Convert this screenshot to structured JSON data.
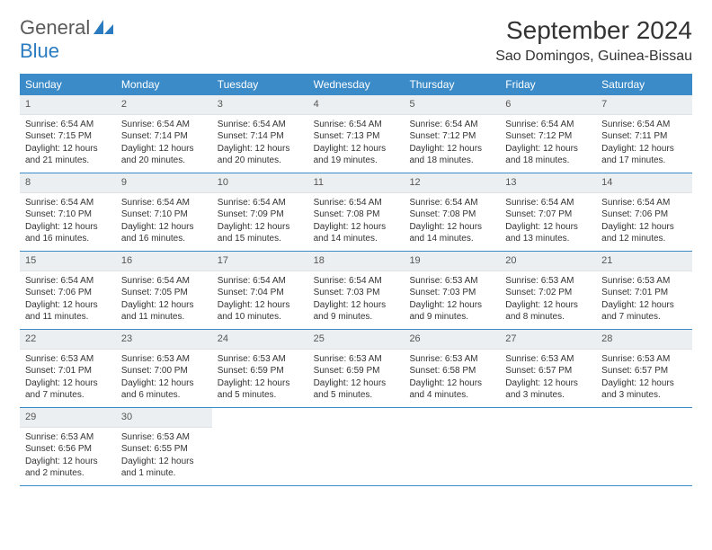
{
  "logo": {
    "line1": "General",
    "line2": "Blue"
  },
  "title": "September 2024",
  "location": "Sao Domingos, Guinea-Bissau",
  "colors": {
    "header_bg": "#3b8bc9",
    "header_fg": "#ffffff",
    "daynum_bg": "#eceff1",
    "row_border": "#3b8bc9",
    "logo_blue": "#2a7bbf"
  },
  "days_of_week": [
    "Sunday",
    "Monday",
    "Tuesday",
    "Wednesday",
    "Thursday",
    "Friday",
    "Saturday"
  ],
  "weeks": [
    [
      {
        "n": "1",
        "sunrise": "6:54 AM",
        "sunset": "7:15 PM",
        "daylight": "12 hours and 21 minutes."
      },
      {
        "n": "2",
        "sunrise": "6:54 AM",
        "sunset": "7:14 PM",
        "daylight": "12 hours and 20 minutes."
      },
      {
        "n": "3",
        "sunrise": "6:54 AM",
        "sunset": "7:14 PM",
        "daylight": "12 hours and 20 minutes."
      },
      {
        "n": "4",
        "sunrise": "6:54 AM",
        "sunset": "7:13 PM",
        "daylight": "12 hours and 19 minutes."
      },
      {
        "n": "5",
        "sunrise": "6:54 AM",
        "sunset": "7:12 PM",
        "daylight": "12 hours and 18 minutes."
      },
      {
        "n": "6",
        "sunrise": "6:54 AM",
        "sunset": "7:12 PM",
        "daylight": "12 hours and 18 minutes."
      },
      {
        "n": "7",
        "sunrise": "6:54 AM",
        "sunset": "7:11 PM",
        "daylight": "12 hours and 17 minutes."
      }
    ],
    [
      {
        "n": "8",
        "sunrise": "6:54 AM",
        "sunset": "7:10 PM",
        "daylight": "12 hours and 16 minutes."
      },
      {
        "n": "9",
        "sunrise": "6:54 AM",
        "sunset": "7:10 PM",
        "daylight": "12 hours and 16 minutes."
      },
      {
        "n": "10",
        "sunrise": "6:54 AM",
        "sunset": "7:09 PM",
        "daylight": "12 hours and 15 minutes."
      },
      {
        "n": "11",
        "sunrise": "6:54 AM",
        "sunset": "7:08 PM",
        "daylight": "12 hours and 14 minutes."
      },
      {
        "n": "12",
        "sunrise": "6:54 AM",
        "sunset": "7:08 PM",
        "daylight": "12 hours and 14 minutes."
      },
      {
        "n": "13",
        "sunrise": "6:54 AM",
        "sunset": "7:07 PM",
        "daylight": "12 hours and 13 minutes."
      },
      {
        "n": "14",
        "sunrise": "6:54 AM",
        "sunset": "7:06 PM",
        "daylight": "12 hours and 12 minutes."
      }
    ],
    [
      {
        "n": "15",
        "sunrise": "6:54 AM",
        "sunset": "7:06 PM",
        "daylight": "12 hours and 11 minutes."
      },
      {
        "n": "16",
        "sunrise": "6:54 AM",
        "sunset": "7:05 PM",
        "daylight": "12 hours and 11 minutes."
      },
      {
        "n": "17",
        "sunrise": "6:54 AM",
        "sunset": "7:04 PM",
        "daylight": "12 hours and 10 minutes."
      },
      {
        "n": "18",
        "sunrise": "6:54 AM",
        "sunset": "7:03 PM",
        "daylight": "12 hours and 9 minutes."
      },
      {
        "n": "19",
        "sunrise": "6:53 AM",
        "sunset": "7:03 PM",
        "daylight": "12 hours and 9 minutes."
      },
      {
        "n": "20",
        "sunrise": "6:53 AM",
        "sunset": "7:02 PM",
        "daylight": "12 hours and 8 minutes."
      },
      {
        "n": "21",
        "sunrise": "6:53 AM",
        "sunset": "7:01 PM",
        "daylight": "12 hours and 7 minutes."
      }
    ],
    [
      {
        "n": "22",
        "sunrise": "6:53 AM",
        "sunset": "7:01 PM",
        "daylight": "12 hours and 7 minutes."
      },
      {
        "n": "23",
        "sunrise": "6:53 AM",
        "sunset": "7:00 PM",
        "daylight": "12 hours and 6 minutes."
      },
      {
        "n": "24",
        "sunrise": "6:53 AM",
        "sunset": "6:59 PM",
        "daylight": "12 hours and 5 minutes."
      },
      {
        "n": "25",
        "sunrise": "6:53 AM",
        "sunset": "6:59 PM",
        "daylight": "12 hours and 5 minutes."
      },
      {
        "n": "26",
        "sunrise": "6:53 AM",
        "sunset": "6:58 PM",
        "daylight": "12 hours and 4 minutes."
      },
      {
        "n": "27",
        "sunrise": "6:53 AM",
        "sunset": "6:57 PM",
        "daylight": "12 hours and 3 minutes."
      },
      {
        "n": "28",
        "sunrise": "6:53 AM",
        "sunset": "6:57 PM",
        "daylight": "12 hours and 3 minutes."
      }
    ],
    [
      {
        "n": "29",
        "sunrise": "6:53 AM",
        "sunset": "6:56 PM",
        "daylight": "12 hours and 2 minutes."
      },
      {
        "n": "30",
        "sunrise": "6:53 AM",
        "sunset": "6:55 PM",
        "daylight": "12 hours and 1 minute."
      },
      null,
      null,
      null,
      null,
      null
    ]
  ],
  "labels": {
    "sunrise": "Sunrise:",
    "sunset": "Sunset:",
    "daylight": "Daylight:"
  }
}
